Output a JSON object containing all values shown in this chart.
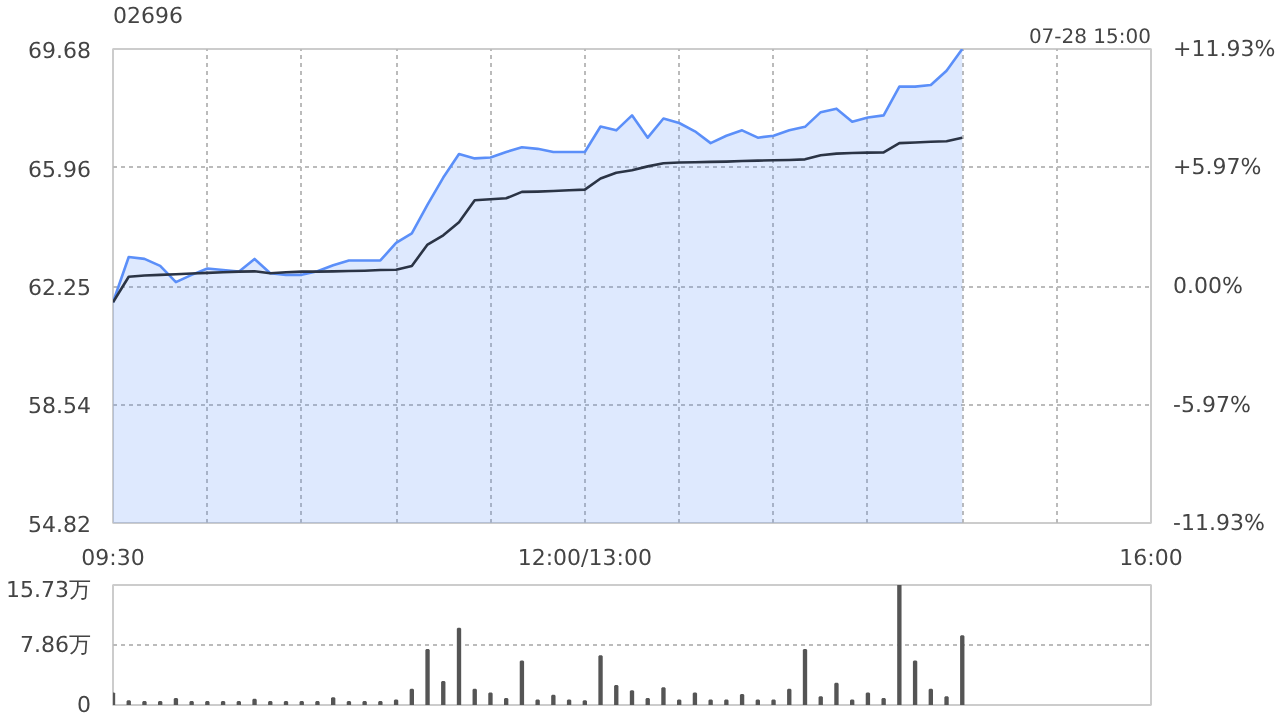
{
  "chart_data": [
    {
      "type": "area",
      "title": "02696",
      "annotations": [
        "07-28 15:00"
      ],
      "categories": [
        "09:30",
        null,
        null,
        null,
        null,
        null,
        null,
        null,
        null,
        null,
        null,
        null,
        null,
        null,
        null,
        null,
        null,
        null,
        null,
        null,
        null,
        null,
        null,
        null,
        null,
        null,
        null,
        null,
        null,
        null,
        "12:00/13:00",
        null,
        null,
        null,
        null,
        null,
        null,
        null,
        null,
        null,
        null,
        null,
        null,
        null,
        null,
        null,
        null,
        null,
        null,
        null,
        null,
        null,
        null,
        null,
        null,
        null,
        null,
        null,
        null,
        null,
        null,
        null,
        null,
        null,
        null,
        null,
        "16:00"
      ],
      "series": [
        {
          "type": "area",
          "color": "#5b8ff9",
          "values": [
            61.74,
            63.16,
            63.1,
            62.88,
            62.37,
            62.6,
            62.8,
            62.75,
            62.7,
            63.1,
            62.65,
            62.6,
            62.6,
            62.71,
            62.9,
            63.05,
            63.05,
            63.05,
            63.6,
            63.9,
            64.8,
            65.65,
            66.39,
            66.25,
            66.28,
            66.45,
            66.6,
            66.55,
            66.45,
            66.45,
            66.45,
            67.25,
            67.13,
            67.6,
            66.9,
            67.5,
            67.36,
            67.1,
            66.73,
            66.96,
            67.13,
            66.9,
            66.96,
            67.13,
            67.24,
            67.7,
            67.81,
            67.4,
            67.53,
            67.6,
            68.5,
            68.5,
            68.55,
            69.0,
            69.68,
            null,
            null,
            null,
            null,
            null,
            null,
            null,
            null,
            null,
            null,
            null,
            null
          ]
        },
        {
          "type": "line",
          "color": "#2b3445",
          "values": [
            61.74,
            62.54,
            62.58,
            62.6,
            62.62,
            62.64,
            62.66,
            62.68,
            62.7,
            62.71,
            62.65,
            62.68,
            62.7,
            62.7,
            62.71,
            62.72,
            62.73,
            62.75,
            62.76,
            62.88,
            63.55,
            63.84,
            64.25,
            64.94,
            64.97,
            65.0,
            65.2,
            65.21,
            65.23,
            65.25,
            65.27,
            65.62,
            65.8,
            65.88,
            66.0,
            66.1,
            66.12,
            66.13,
            66.14,
            66.15,
            66.17,
            66.18,
            66.19,
            66.2,
            66.22,
            66.35,
            66.4,
            66.42,
            66.43,
            66.44,
            66.73,
            66.75,
            66.77,
            66.79,
            66.9,
            null,
            null,
            null,
            null,
            null,
            null,
            null,
            null,
            null,
            null,
            null,
            null
          ]
        }
      ],
      "ylim": [
        54.82,
        69.68
      ],
      "yticks": [
        54.82,
        58.54,
        62.25,
        65.96,
        69.68
      ],
      "y2lim": [
        -11.93,
        11.93
      ],
      "y2ticks": [
        {
          "value": -11.93,
          "label": "-11.93%"
        },
        {
          "value": -5.97,
          "label": "-5.97%"
        },
        {
          "value": 0,
          "label": "0.00%"
        },
        {
          "value": 5.97,
          "label": "+5.97%"
        },
        {
          "value": 11.93,
          "label": "+11.93%"
        }
      ],
      "grid": true
    },
    {
      "type": "bar",
      "color": "#555555",
      "categories": [
        null,
        null,
        null,
        null,
        null,
        null,
        null,
        null,
        null,
        null,
        null,
        null,
        null,
        null,
        null,
        null,
        null,
        null,
        null,
        null,
        null,
        null,
        null,
        null,
        null,
        null,
        null,
        null,
        null,
        null,
        null,
        null,
        null,
        null,
        null,
        null,
        null,
        null,
        null,
        null,
        null,
        null,
        null,
        null,
        null,
        null,
        null,
        null,
        null,
        null,
        null,
        null,
        null,
        null,
        null,
        null,
        null,
        null,
        null,
        null,
        null,
        null,
        null,
        null,
        null,
        null,
        null
      ],
      "values": [
        1.5,
        0.5,
        0.4,
        0.4,
        0.8,
        0.4,
        0.4,
        0.4,
        0.4,
        0.7,
        0.4,
        0.4,
        0.4,
        0.4,
        0.9,
        0.4,
        0.4,
        0.4,
        0.6,
        2.0,
        7.2,
        3.0,
        10.0,
        2.0,
        1.5,
        0.8,
        5.7,
        0.6,
        1.2,
        0.6,
        0.5,
        6.4,
        2.5,
        1.8,
        0.8,
        2.2,
        0.6,
        1.5,
        0.6,
        0.6,
        1.3,
        0.6,
        0.6,
        2.0,
        7.2,
        1.0,
        2.8,
        0.6,
        1.5,
        0.8,
        15.7,
        5.7,
        2.0,
        1.0,
        9.0,
        null,
        null,
        null,
        null,
        null,
        null,
        null,
        null,
        null,
        null,
        null,
        null
      ],
      "ylim": [
        0,
        15.73
      ],
      "yticks": [
        0,
        {
          "value": 7.86,
          "label": "7.86万"
        },
        {
          "value": 15.73,
          "label": "15.73万"
        }
      ],
      "tick_labels": "y",
      "grid": "y"
    }
  ]
}
